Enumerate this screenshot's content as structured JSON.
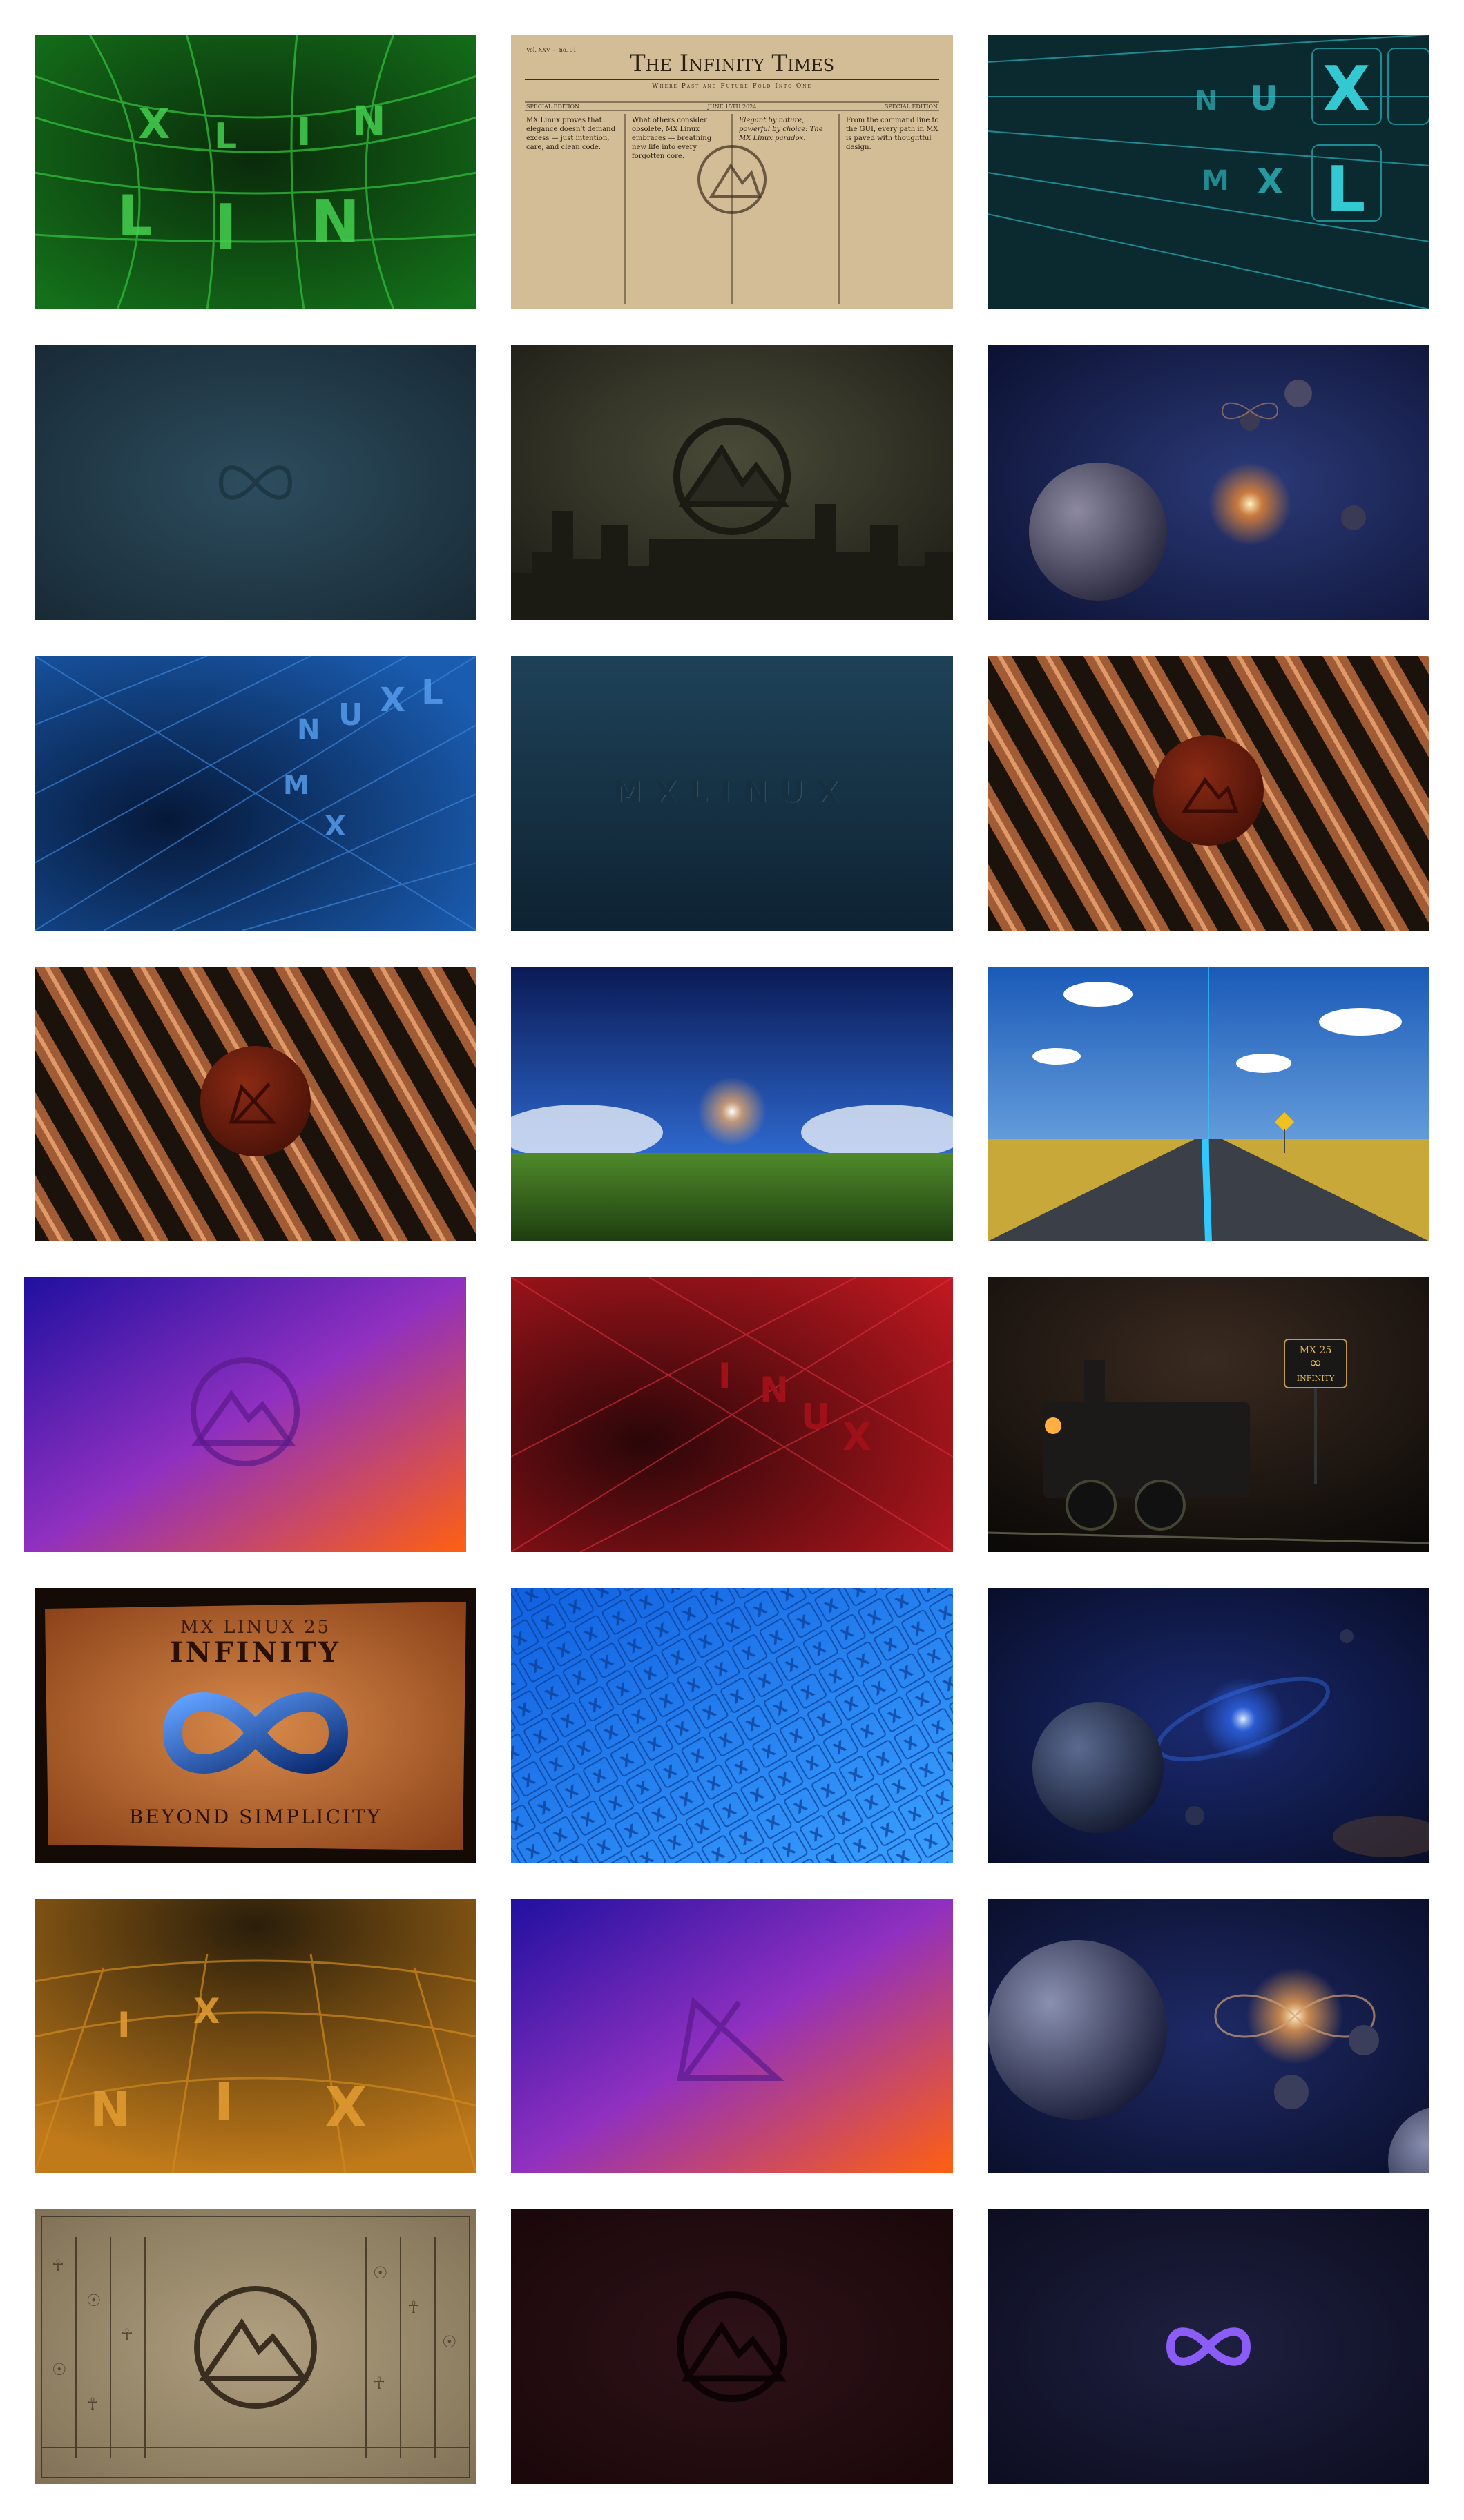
{
  "gallery": {
    "infinity_times": {
      "masthead": "The Infinity Times",
      "tagline": "Where Past and Future Fold Into One",
      "vol": "Vol. XXV — no. 01",
      "edition_left": "SPECIAL EDITION",
      "date": "JUNE 15TH 2024",
      "edition_right": "SPECIAL EDITION",
      "col1": "MX Linux proves that elegance doesn't demand excess — just intention, care, and clean code.",
      "col2": "What others consider obsolete, MX Linux embraces — breathing new life into every forgotten core.",
      "col3": "Elegant by nature, powerful by choice: The MX Linux paradox.",
      "col4": "From the command line to the GUI, every path in MX is paved with thoughtful design."
    },
    "mx_wordmark": "MXLINUX",
    "parchment": {
      "line1": "MX LINUX 25",
      "line2": "INFINITY",
      "line3": "BEYOND SIMPLICITY"
    },
    "sign": {
      "line1": "MX 25",
      "line2": "INFINITY"
    },
    "accent_colors": [
      "#1a7a1a",
      "#1b4d8f",
      "#7a1218",
      "#f28a1e",
      "#2a8fe0",
      "#8b5cf6"
    ]
  }
}
